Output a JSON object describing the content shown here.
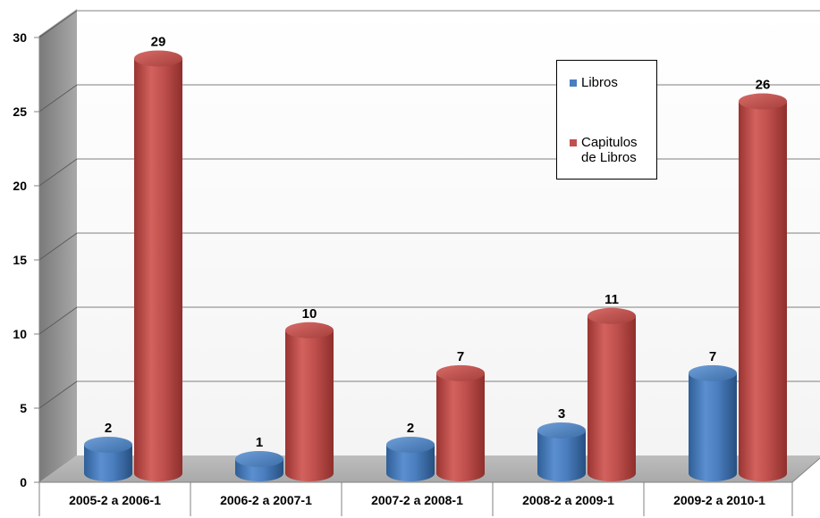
{
  "chart_data": {
    "type": "bar",
    "categories": [
      "2005-2 a 2006-1",
      "2006-2 a 2007-1",
      "2007-2 a 2008-1",
      "2008-2 a 2009-1",
      "2009-2 a 2010-1"
    ],
    "series": [
      {
        "name": "Libros",
        "values": [
          2,
          1,
          2,
          3,
          7
        ],
        "color": "#4a7ebf"
      },
      {
        "name": "Capitulos de Libros",
        "values": [
          29,
          10,
          7,
          11,
          26
        ],
        "color": "#c0504d"
      }
    ],
    "title": "",
    "xlabel": "",
    "ylabel": "",
    "ylim": [
      0,
      30
    ],
    "yticks": [
      "0",
      "5",
      "10",
      "15",
      "20",
      "25",
      "30"
    ],
    "grid": true,
    "legend_position": "top-right",
    "style": "3d-cylinder"
  }
}
